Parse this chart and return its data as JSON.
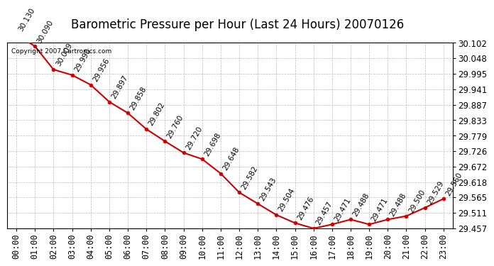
{
  "title": "Barometric Pressure per Hour (Last 24 Hours) 20070126",
  "copyright": "Copyright 2007 Cartronics.com",
  "hours": [
    "00:00",
    "01:00",
    "02:00",
    "03:00",
    "04:00",
    "05:00",
    "06:00",
    "07:00",
    "08:00",
    "09:00",
    "10:00",
    "11:00",
    "12:00",
    "13:00",
    "14:00",
    "15:00",
    "16:00",
    "17:00",
    "18:00",
    "19:00",
    "20:00",
    "21:00",
    "22:00",
    "23:00"
  ],
  "values": [
    30.13,
    30.09,
    30.009,
    29.99,
    29.956,
    29.897,
    29.858,
    29.802,
    29.76,
    29.72,
    29.698,
    29.648,
    29.582,
    29.543,
    29.504,
    29.476,
    29.457,
    29.471,
    29.488,
    29.471,
    29.488,
    29.5,
    29.529,
    29.56
  ],
  "line_color": "#cc0000",
  "marker_color": "#cc0000",
  "bg_color": "#ffffff",
  "grid_color": "#bbbbbb",
  "ylim_min": 29.457,
  "ylim_max": 30.102,
  "yticks": [
    30.102,
    30.048,
    29.995,
    29.941,
    29.887,
    29.833,
    29.779,
    29.726,
    29.672,
    29.618,
    29.565,
    29.511,
    29.457
  ],
  "title_fontsize": 12,
  "label_fontsize": 8.5,
  "annotation_fontsize": 7.5
}
